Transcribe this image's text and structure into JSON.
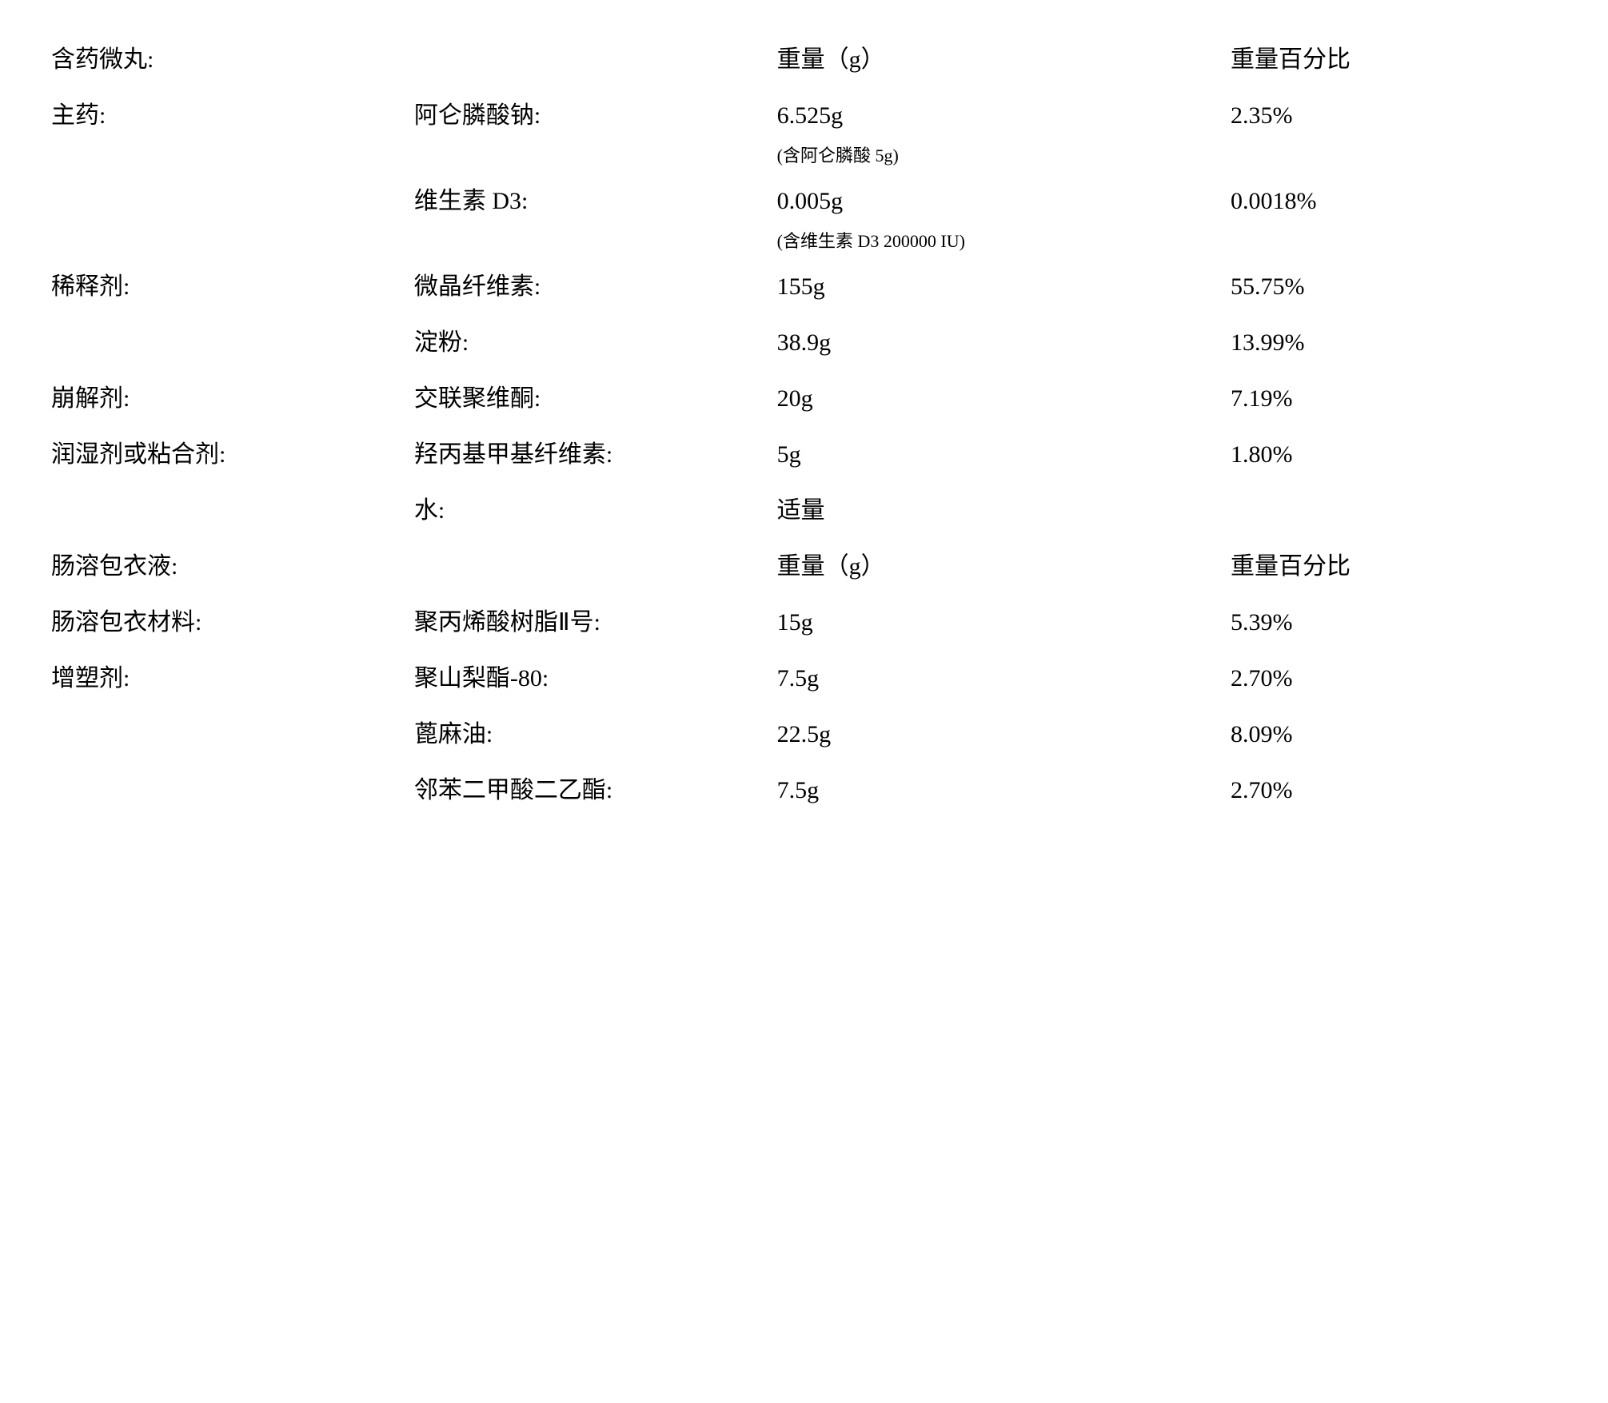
{
  "rows": [
    {
      "c1": "含药微丸:",
      "c2": "",
      "c3": "重量（g）",
      "c4": "重量百分比",
      "sub": false
    },
    {
      "c1": "主药:",
      "c2": "阿仑膦酸钠:",
      "c3": "6.525g",
      "c4": "2.35%",
      "sub": false
    },
    {
      "c1": "",
      "c2": "",
      "c3": "(含阿仑膦酸 5g)",
      "c4": "",
      "sub": true
    },
    {
      "c1": "",
      "c2": "维生素 D3:",
      "c3": "0.005g",
      "c4": "0.0018%",
      "sub": false
    },
    {
      "c1": "",
      "c2": "",
      "c3": "(含维生素 D3  200000 IU)",
      "c4": "",
      "sub": true
    },
    {
      "c1": "稀释剂:",
      "c2": "微晶纤维素:",
      "c3": "155g",
      "c4": "55.75%",
      "sub": false
    },
    {
      "c1": "",
      "c2": "淀粉:",
      "c3": "38.9g",
      "c4": "13.99%",
      "sub": false
    },
    {
      "c1": "崩解剂:",
      "c2": "交联聚维酮:",
      "c3": "20g",
      "c4": "7.19%",
      "sub": false
    },
    {
      "c1": "润湿剂或粘合剂:",
      "c2": "羟丙基甲基纤维素:",
      "c3": "5g",
      "c4": "1.80%",
      "sub": false
    },
    {
      "c1": "",
      "c2": "水:",
      "c3": "适量",
      "c4": "",
      "sub": false
    },
    {
      "c1": "肠溶包衣液:",
      "c2": "",
      "c3": "重量（g）",
      "c4": "重量百分比",
      "sub": false
    },
    {
      "c1": "肠溶包衣材料:",
      "c2": "聚丙烯酸树脂Ⅱ号:",
      "c3": "15g",
      "c4": "5.39%",
      "sub": false
    },
    {
      "c1": "增塑剂:",
      "c2": "聚山梨酯-80:",
      "c3": "7.5g",
      "c4": "2.70%",
      "sub": false
    },
    {
      "c1": "",
      "c2": "蓖麻油:",
      "c3": "22.5g",
      "c4": "8.09%",
      "sub": false
    },
    {
      "c1": "",
      "c2": "邻苯二甲酸二乙酯:",
      "c3": "7.5g",
      "c4": "2.70%",
      "sub": false
    }
  ]
}
